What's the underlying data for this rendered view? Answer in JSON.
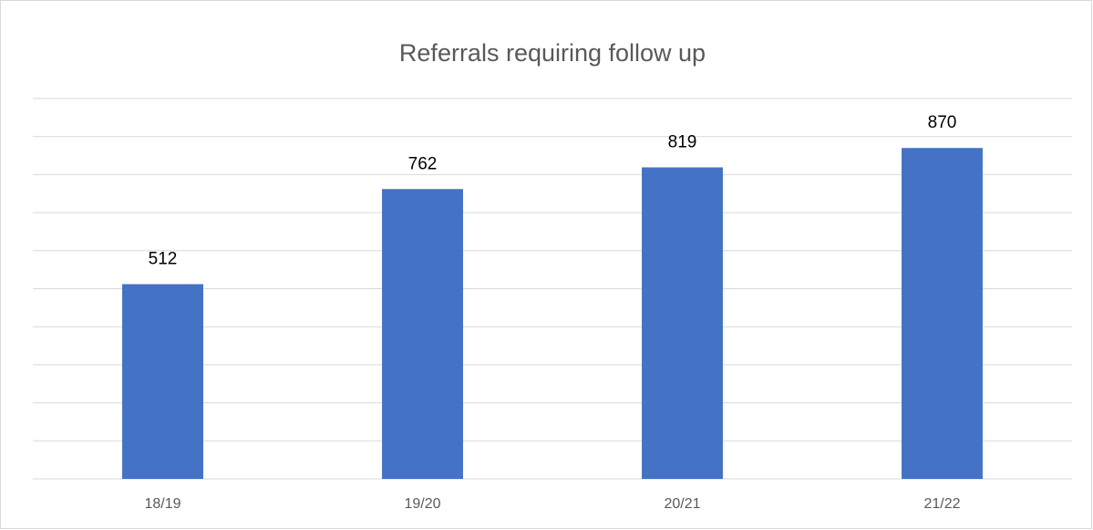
{
  "chart_data": {
    "type": "bar",
    "title": "Referrals requiring follow up",
    "categories": [
      "18/19",
      "19/20",
      "20/21",
      "21/22"
    ],
    "values": [
      512,
      762,
      819,
      870
    ],
    "color": "#4472c4",
    "ylim": [
      0,
      1000
    ],
    "yticks": [
      0,
      100,
      200,
      300,
      400,
      500,
      600,
      700,
      800,
      900,
      1000
    ],
    "grid": true
  }
}
